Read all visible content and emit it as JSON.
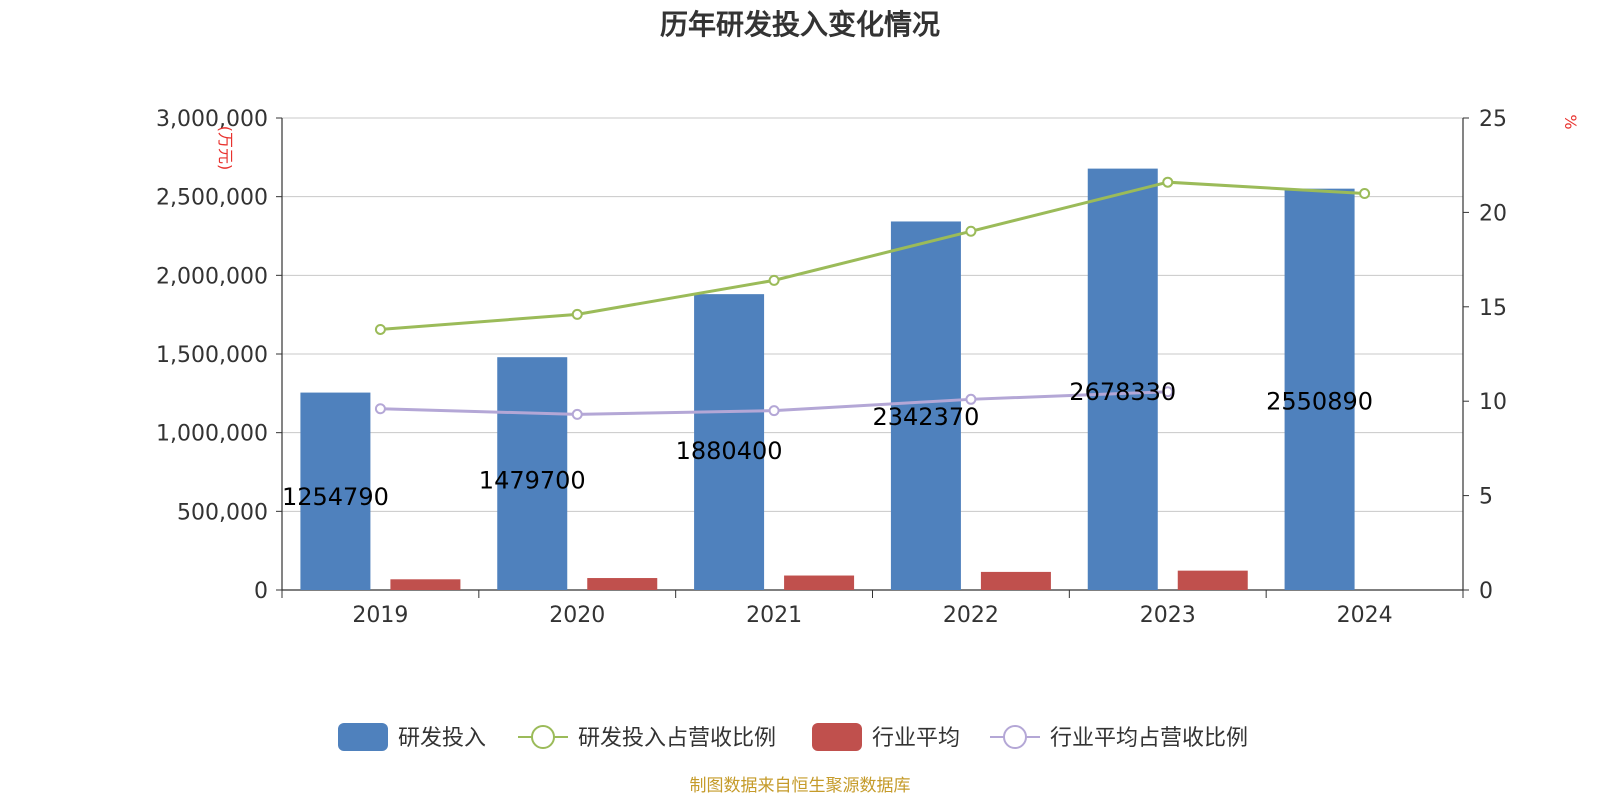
{
  "chart_data": {
    "type": "bar",
    "title": "历年研发投入变化情况",
    "categories": [
      "2019",
      "2020",
      "2021",
      "2022",
      "2023",
      "2024"
    ],
    "left_axis": {
      "unit": "(万元)",
      "ylim": [
        0,
        3000000
      ],
      "ticks": [
        "0",
        "500,000",
        "1,000,000",
        "1,500,000",
        "2,000,000",
        "2,500,000",
        "3,000,000"
      ]
    },
    "right_axis": {
      "unit": "%",
      "ylim": [
        0,
        25
      ],
      "ticks": [
        "0",
        "5",
        "10",
        "15",
        "20",
        "25"
      ]
    },
    "series": [
      {
        "name": "研发投入",
        "type": "bar",
        "axis": "left",
        "color": "#4f81bd",
        "values": [
          1254790,
          1479700,
          1880400,
          2342370,
          2678330,
          2550890
        ],
        "data_labels": [
          "1254790",
          "1479700",
          "1880400",
          "2342370",
          "2678330",
          "2550890"
        ]
      },
      {
        "name": "研发投入占营收比例",
        "type": "line",
        "axis": "right",
        "color": "#9bbb59",
        "values": [
          13.8,
          14.6,
          16.4,
          19.0,
          21.6,
          21.0
        ]
      },
      {
        "name": "行业平均",
        "type": "bar",
        "axis": "left",
        "color": "#c0504d",
        "values": [
          68000,
          76000,
          92000,
          115000,
          123000,
          null
        ]
      },
      {
        "name": "行业平均占营收比例",
        "type": "line",
        "axis": "right",
        "color": "#b4a7d6",
        "values": [
          9.6,
          9.3,
          9.5,
          10.1,
          10.5,
          null
        ]
      }
    ],
    "grid": true,
    "legend_position": "bottom",
    "source_note": "制图数据来自恒生聚源数据库"
  }
}
